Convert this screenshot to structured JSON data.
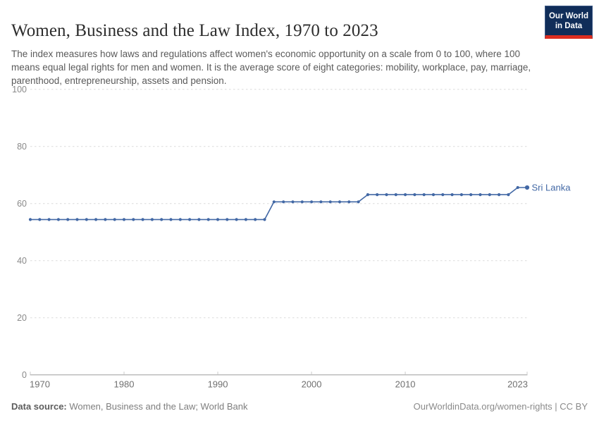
{
  "header": {
    "title": "Women, Business and the Law Index, 1970 to 2023",
    "subtitle": "The index measures how laws and regulations affect women's economic opportunity on a scale from 0 to 100, where 100 means equal legal rights for men and women. It is the average score of eight categories: mobility, workplace, pay, marriage, parenthood, entrepreneurship, assets and pension."
  },
  "logo": {
    "line1": "Our World",
    "line2": "in Data",
    "bg_color": "#102d59",
    "accent_color": "#dc2d20"
  },
  "chart_data": {
    "type": "line",
    "title": "Women, Business and the Law Index, 1970 to 2023",
    "xlabel": "",
    "ylabel": "",
    "xlim": [
      1970,
      2023
    ],
    "ylim": [
      0,
      100
    ],
    "grid": "dashed-horizontal",
    "legend_position": "end-of-line-label",
    "x_ticks": [
      1970,
      1980,
      1990,
      2000,
      2010,
      2023
    ],
    "y_ticks": [
      0,
      20,
      40,
      60,
      80,
      100
    ],
    "series": [
      {
        "name": "Sri Lanka",
        "color": "#4268a5",
        "points": [
          [
            1970,
            54.4
          ],
          [
            1971,
            54.4
          ],
          [
            1972,
            54.4
          ],
          [
            1973,
            54.4
          ],
          [
            1974,
            54.4
          ],
          [
            1975,
            54.4
          ],
          [
            1976,
            54.4
          ],
          [
            1977,
            54.4
          ],
          [
            1978,
            54.4
          ],
          [
            1979,
            54.4
          ],
          [
            1980,
            54.4
          ],
          [
            1981,
            54.4
          ],
          [
            1982,
            54.4
          ],
          [
            1983,
            54.4
          ],
          [
            1984,
            54.4
          ],
          [
            1985,
            54.4
          ],
          [
            1986,
            54.4
          ],
          [
            1987,
            54.4
          ],
          [
            1988,
            54.4
          ],
          [
            1989,
            54.4
          ],
          [
            1990,
            54.4
          ],
          [
            1991,
            54.4
          ],
          [
            1992,
            54.4
          ],
          [
            1993,
            54.4
          ],
          [
            1994,
            54.4
          ],
          [
            1995,
            54.4
          ],
          [
            1996,
            60.6
          ],
          [
            1997,
            60.6
          ],
          [
            1998,
            60.6
          ],
          [
            1999,
            60.6
          ],
          [
            2000,
            60.6
          ],
          [
            2001,
            60.6
          ],
          [
            2002,
            60.6
          ],
          [
            2003,
            60.6
          ],
          [
            2004,
            60.6
          ],
          [
            2005,
            60.6
          ],
          [
            2006,
            63.1
          ],
          [
            2007,
            63.1
          ],
          [
            2008,
            63.1
          ],
          [
            2009,
            63.1
          ],
          [
            2010,
            63.1
          ],
          [
            2011,
            63.1
          ],
          [
            2012,
            63.1
          ],
          [
            2013,
            63.1
          ],
          [
            2014,
            63.1
          ],
          [
            2015,
            63.1
          ],
          [
            2016,
            63.1
          ],
          [
            2017,
            63.1
          ],
          [
            2018,
            63.1
          ],
          [
            2019,
            63.1
          ],
          [
            2020,
            63.1
          ],
          [
            2021,
            63.1
          ],
          [
            2022,
            65.6
          ],
          [
            2023,
            65.6
          ]
        ]
      }
    ]
  },
  "footer": {
    "datasource_label": "Data source:",
    "datasource_text": " Women, Business and the Law; World Bank",
    "right_text": "OurWorldinData.org/women-rights | CC BY"
  }
}
